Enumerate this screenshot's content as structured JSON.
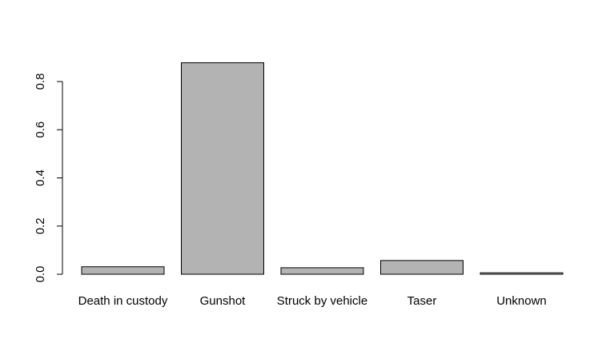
{
  "chart_data": {
    "type": "bar",
    "title": "",
    "xlabel": "",
    "ylabel": "",
    "categories": [
      "Death in custody",
      "Gunshot",
      "Struck by vehicle",
      "Taser",
      "Unknown"
    ],
    "values": [
      0.031,
      0.878,
      0.027,
      0.057,
      0.006
    ],
    "ylim": [
      0,
      0.8
    ],
    "yticks": [
      "0.0",
      "0.2",
      "0.4",
      "0.6",
      "0.8"
    ],
    "grid": false,
    "legend": "none",
    "bar_color": "#b3b3b3",
    "bar_edge_color": "#000000"
  }
}
